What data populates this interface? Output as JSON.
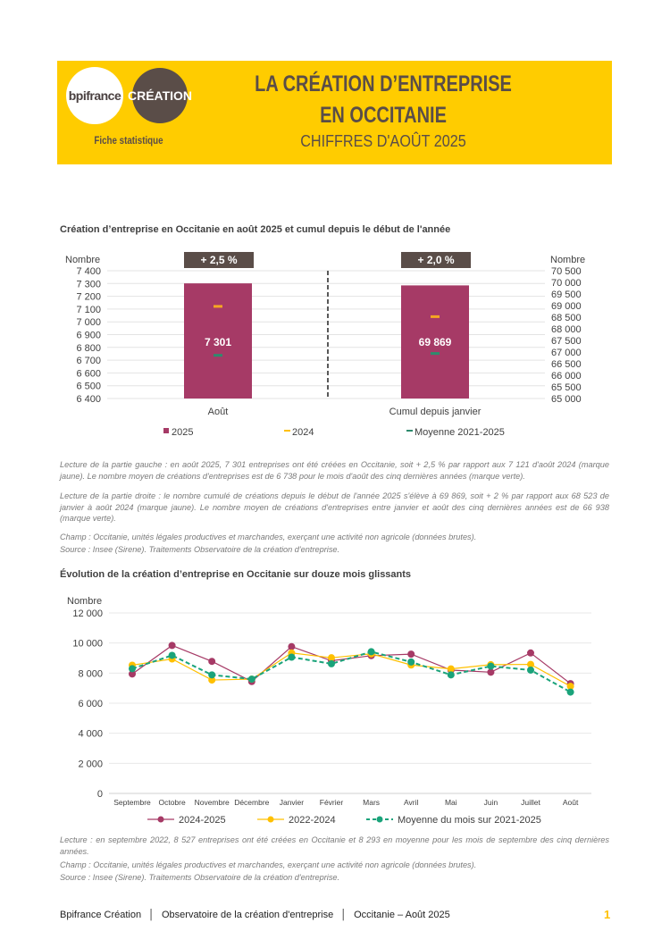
{
  "header": {
    "logo_bpifrance": "bpifrance",
    "logo_creation": "CRÉATION",
    "subtitle_left": "Fiche statistique",
    "title_line1": "LA CRÉATION D’ENTREPRISE",
    "title_line2": "EN OCCITANIE",
    "title_line3": "CHIFFRES D'AOÛT 2025",
    "accent": "#FFCC00"
  },
  "chart1_notes": {
    "left": "Lecture de la partie gauche : en août 2025, 7 301 entreprises ont été créées en Occitanie, soit + 2,5 % par rapport aux 7 121 d'août 2024 (marque jaune). Le nombre moyen de créations d'entreprises est de 6 738 pour le mois d'août des cinq dernières années (marque verte).",
    "right": "Lecture de la partie droite : le nombre cumulé de créations depuis le début de l'année 2025 s'élève à 69 869, soit + 2 % par rapport aux 68 523 de janvier à août 2024 (marque jaune). Le nombre moyen de créations d'entreprises entre janvier et août des cinq dernières années est de 66 938 (marque verte).",
    "champ": "Champ : Occitanie, unités légales productives et marchandes, exerçant une activité non agricole (données brutes).",
    "source": "Source : Insee (Sirene). Traitements Observatoire de la création d'entreprise."
  },
  "chart2_notes": {
    "lecture": "Lecture : en septembre 2022, 8 527 entreprises ont été créées en Occitanie et 8 293 en moyenne pour les mois de septembre des cinq dernières années.",
    "champ": "Champ : Occitanie, unités légales productives et marchandes, exerçant une activité non agricole (données brutes).",
    "source": "Source : Insee (Sirene). Traitements Observatoire de la création d'entreprise."
  },
  "footer": {
    "part1": "Bpifrance Création",
    "part2": "Observatoire de la création d'entreprise",
    "part3": "Occitanie – Août 2025",
    "page": "1"
  },
  "chart_data": [
    {
      "type": "bar",
      "title": "Création d’entreprise en Occitanie en août 2025 et cumul depuis le début de l'année",
      "ylabel_left": "Nombre",
      "ylabel_right": "Nombre",
      "ylim_left": [
        6400,
        7400
      ],
      "ylim_right": [
        65000,
        70500
      ],
      "yticks_left": [
        "6 400",
        "6 500",
        "6 600",
        "6 700",
        "6 800",
        "6 900",
        "7 000",
        "7 100",
        "7 200",
        "7 300",
        "7 400"
      ],
      "yticks_right": [
        "65 000",
        "65 500",
        "66 000",
        "66 500",
        "67 000",
        "67 500",
        "68 000",
        "68 500",
        "69 000",
        "69 500",
        "70 000",
        "70 500"
      ],
      "categories": [
        "Août",
        "Cumul depuis janvier"
      ],
      "series": [
        {
          "name": "2025",
          "values": [
            7301,
            69869
          ],
          "labels": [
            "7 301",
            "69 869"
          ],
          "color": "#A63A66"
        },
        {
          "name": "2024",
          "values": [
            7121,
            68523
          ],
          "color": "#FFC000"
        },
        {
          "name": "Moyenne 2021-2025",
          "values": [
            6738,
            66938
          ],
          "color": "#2E8B6E"
        }
      ],
      "badges": [
        "+ 2,5 %",
        "+ 2,0 %"
      ],
      "legend": "bottom"
    },
    {
      "type": "line",
      "title": "Évolution de la création d’entreprise en Occitanie sur douze mois glissants",
      "ylabel": "Nombre",
      "ylim": [
        0,
        12000
      ],
      "yticks": [
        0,
        2000,
        4000,
        6000,
        8000,
        10000,
        12000
      ],
      "ytick_labels": [
        "0",
        "2 000",
        "4 000",
        "6 000",
        "8 000",
        "10 000",
        "12 000"
      ],
      "categories": [
        "Septembre",
        "Octobre",
        "Novembre",
        "Décembre",
        "Janvier",
        "Février",
        "Mars",
        "Avril",
        "Mai",
        "Juin",
        "Juillet",
        "Août"
      ],
      "series": [
        {
          "name": "2024-2025",
          "color": "#A63A66",
          "dash": false,
          "values": [
            7940,
            9840,
            8780,
            7440,
            9760,
            8820,
            9160,
            9260,
            8200,
            8060,
            9340,
            7301
          ]
        },
        {
          "name": "2022-2024",
          "color": "#FFC000",
          "dash": false,
          "values": [
            8527,
            8940,
            7540,
            7600,
            9340,
            9020,
            9280,
            8540,
            8280,
            8560,
            8580,
            7121
          ]
        },
        {
          "name": "Moyenne du mois sur 2021-2025",
          "color": "#1AA37A",
          "dash": true,
          "values": [
            8293,
            9180,
            7880,
            7600,
            9060,
            8620,
            9420,
            8740,
            7880,
            8460,
            8200,
            6738
          ]
        }
      ],
      "grid": true,
      "legend": "bottom"
    }
  ]
}
